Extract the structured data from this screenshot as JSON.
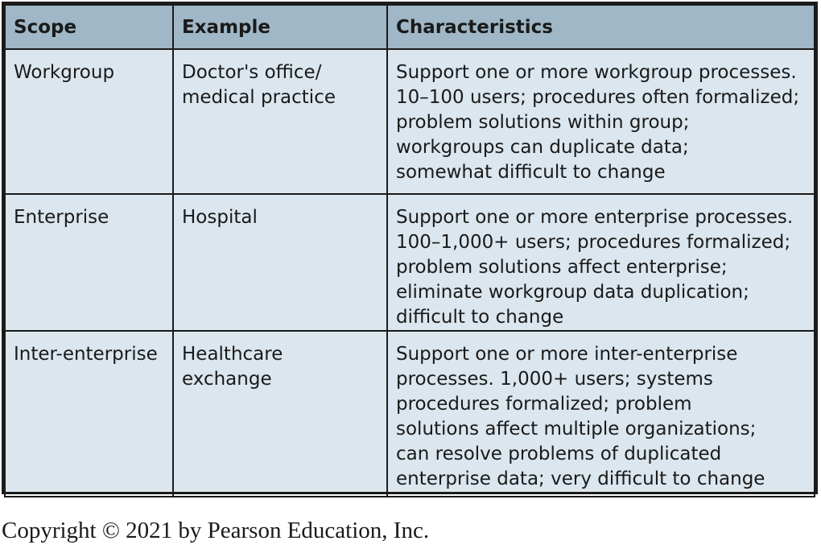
{
  "table": {
    "headers": [
      "Scope",
      "Example",
      "Characteristics"
    ],
    "rows": [
      {
        "scope": "Workgroup",
        "example": "Doctor's office/\nmedical practice",
        "characteristics": "Support one or more workgroup processes.\n10–100 users; procedures often formalized;\nproblem solutions within group;\nworkgroups can duplicate data;\nsomewhat difficult to change"
      },
      {
        "scope": "Enterprise",
        "example": "Hospital",
        "characteristics": "Support one or more enterprise processes.\n100–1,000+ users; procedures formalized;\nproblem solutions affect enterprise;\neliminate workgroup data duplication;\ndifficult to change"
      },
      {
        "scope": "Inter-enterprise",
        "example": "Healthcare exchange",
        "characteristics": "Support one or more inter-enterprise\nprocesses. 1,000+ users; systems\nprocedures formalized; problem\nsolutions affect multiple organizations;\ncan resolve problems of duplicated\nenterprise data; very difficult to change"
      }
    ]
  },
  "colors": {
    "header_bg": "#9fb7c6",
    "cell_bg": "#dbe6ee",
    "border": "#1b1b1b"
  },
  "footer": {
    "copyright": "Copyright © 2021 by Pearson Education, Inc."
  }
}
